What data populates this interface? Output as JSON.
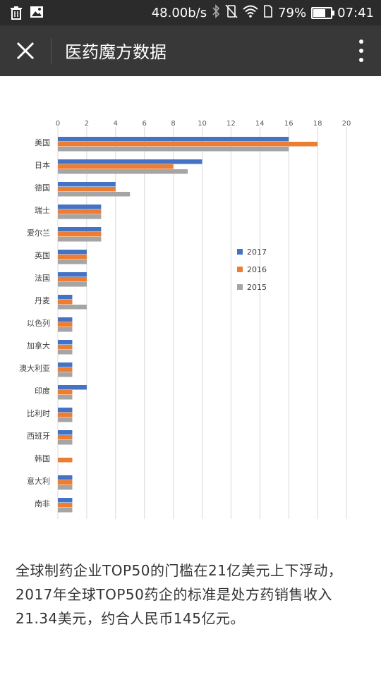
{
  "status_bar": {
    "net_speed": "48.00b/s",
    "battery_pct": "79%",
    "battery_level": 0.79,
    "time": "07:41",
    "icons": [
      "trash-icon",
      "image-icon",
      "bluetooth-icon",
      "vibrate-icon",
      "wifi-icon",
      "sim-icon",
      "battery-icon"
    ]
  },
  "title_bar": {
    "title": "医药魔方数据",
    "close_icon": "close-icon",
    "more_icon": "more-vertical-icon"
  },
  "chart_data": {
    "type": "bar",
    "orientation": "horizontal",
    "categories": [
      "美国",
      "日本",
      "德国",
      "瑞士",
      "爱尔兰",
      "英国",
      "法国",
      "丹麦",
      "以色列",
      "加拿大",
      "澳大利亚",
      "印度",
      "比利时",
      "西班牙",
      "韩国",
      "意大利",
      "南非"
    ],
    "series": [
      {
        "name": "2017",
        "color": "#4472c4",
        "values": [
          16,
          10,
          4,
          3,
          3,
          2,
          2,
          1,
          1,
          1,
          1,
          2,
          1,
          1,
          0,
          1,
          1
        ]
      },
      {
        "name": "2016",
        "color": "#ed7d31",
        "values": [
          18,
          8,
          4,
          3,
          3,
          2,
          2,
          1,
          1,
          1,
          1,
          1,
          1,
          1,
          1,
          1,
          1
        ]
      },
      {
        "name": "2015",
        "color": "#a5a5a5",
        "values": [
          16,
          9,
          5,
          3,
          3,
          2,
          2,
          2,
          1,
          1,
          1,
          1,
          1,
          1,
          0,
          1,
          1
        ]
      }
    ],
    "x_ticks": [
      "0",
      "2",
      "4",
      "6",
      "8",
      "10",
      "12",
      "14",
      "16",
      "18",
      "20"
    ],
    "xlim": [
      0,
      20
    ],
    "grid": true,
    "legend_position": "right-middle"
  },
  "article": {
    "text": "全球制药企业TOP50的门槛在21亿美元上下浮动，2017年全球TOP50药企的标准是处方药销售收入21.34美元，约合人民币145亿元。"
  }
}
